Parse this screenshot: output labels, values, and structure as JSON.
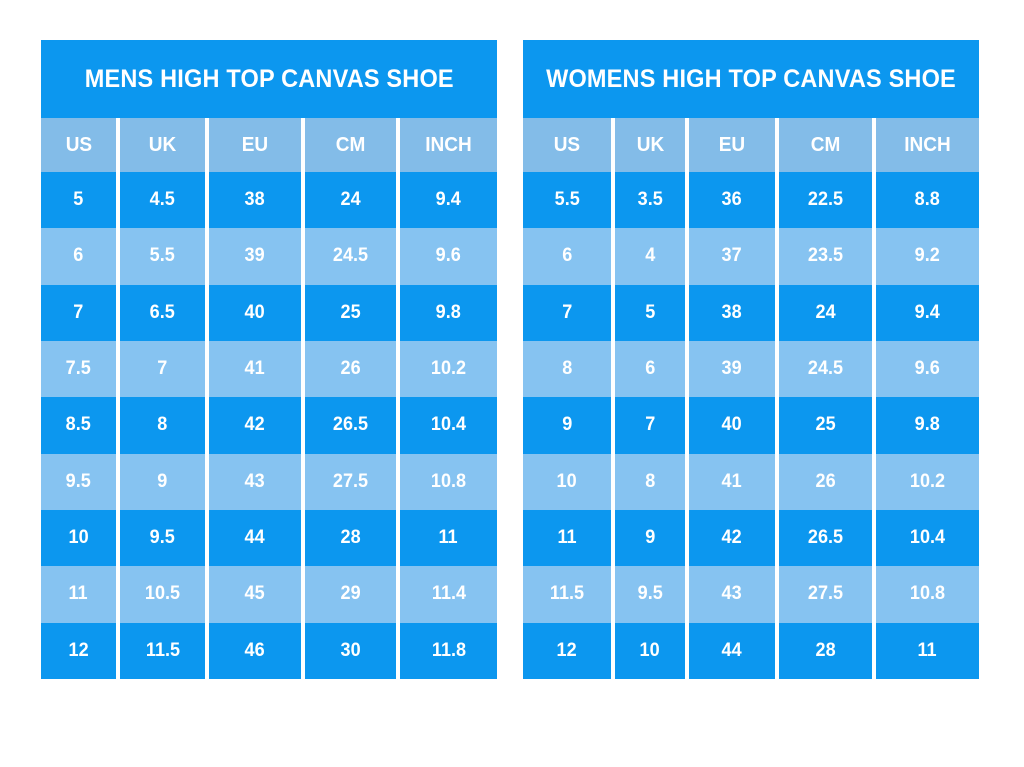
{
  "colors": {
    "row_dark": "#0c97ef",
    "row_light": "#86c3f1",
    "header_bg": "#83bce8",
    "text": "#ffffff",
    "background": "#ffffff"
  },
  "chart_data": [
    {
      "type": "table",
      "title": "MENS HIGH TOP CANVAS SHOE",
      "columns": [
        "US",
        "UK",
        "EU",
        "CM",
        "INCH"
      ],
      "rows": [
        [
          "5",
          "4.5",
          "38",
          "24",
          "9.4"
        ],
        [
          "6",
          "5.5",
          "39",
          "24.5",
          "9.6"
        ],
        [
          "7",
          "6.5",
          "40",
          "25",
          "9.8"
        ],
        [
          "7.5",
          "7",
          "41",
          "26",
          "10.2"
        ],
        [
          "8.5",
          "8",
          "42",
          "26.5",
          "10.4"
        ],
        [
          "9.5",
          "9",
          "43",
          "27.5",
          "10.8"
        ],
        [
          "10",
          "9.5",
          "44",
          "28",
          "11"
        ],
        [
          "11",
          "10.5",
          "45",
          "29",
          "11.4"
        ],
        [
          "12",
          "11.5",
          "46",
          "30",
          "11.8"
        ]
      ]
    },
    {
      "type": "table",
      "title": "WOMENS HIGH TOP CANVAS SHOE",
      "columns": [
        "US",
        "UK",
        "EU",
        "CM",
        "INCH"
      ],
      "rows": [
        [
          "5.5",
          "3.5",
          "36",
          "22.5",
          "8.8"
        ],
        [
          "6",
          "4",
          "37",
          "23.5",
          "9.2"
        ],
        [
          "7",
          "5",
          "38",
          "24",
          "9.4"
        ],
        [
          "8",
          "6",
          "39",
          "24.5",
          "9.6"
        ],
        [
          "9",
          "7",
          "40",
          "25",
          "9.8"
        ],
        [
          "10",
          "8",
          "41",
          "26",
          "10.2"
        ],
        [
          "11",
          "9",
          "42",
          "26.5",
          "10.4"
        ],
        [
          "11.5",
          "9.5",
          "43",
          "27.5",
          "10.8"
        ],
        [
          "12",
          "10",
          "44",
          "28",
          "11"
        ]
      ]
    }
  ]
}
